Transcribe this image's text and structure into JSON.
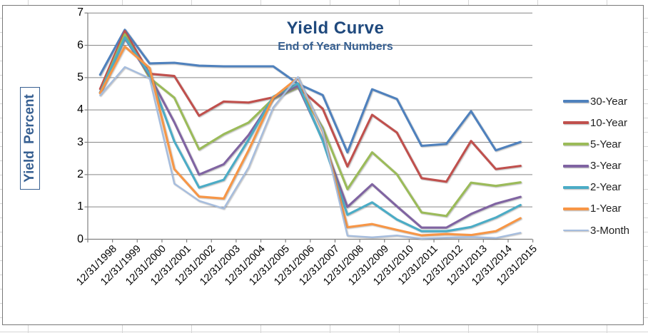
{
  "chart_data": {
    "type": "line",
    "title": "Yield Curve",
    "subtitle": "End of Year Numbers",
    "ylabel": "Yield Percent",
    "ylim": [
      0,
      7
    ],
    "yticks": [
      0,
      1,
      2,
      3,
      4,
      5,
      6,
      7
    ],
    "grid": "horizontal",
    "legend_position": "right",
    "categories": [
      "12/31/1998",
      "12/31/1999",
      "12/31/2000",
      "12/31/2001",
      "12/31/2002",
      "12/31/2003",
      "12/31/2004",
      "12/31/2005",
      "12/31/2006",
      "12/31/2007",
      "12/31/2008",
      "12/31/2009",
      "12/31/2010",
      "12/31/2011",
      "12/31/2012",
      "12/31/2013",
      "12/31/2014",
      "12/31/2015"
    ],
    "series": [
      {
        "name": "30-Year",
        "color": "#4F81BD",
        "values": [
          5.09,
          6.48,
          5.44,
          5.46,
          5.37,
          5.35,
          5.35,
          5.35,
          4.81,
          4.46,
          2.69,
          4.64,
          4.34,
          2.89,
          2.95,
          3.96,
          2.75,
          3.01
        ]
      },
      {
        "name": "10-Year",
        "color": "#C0504D",
        "values": [
          4.65,
          6.44,
          5.12,
          5.05,
          3.82,
          4.26,
          4.23,
          4.39,
          4.71,
          4.04,
          2.25,
          3.85,
          3.3,
          1.89,
          1.78,
          3.04,
          2.17,
          2.27
        ]
      },
      {
        "name": "5-Year",
        "color": "#9BBB59",
        "values": [
          4.54,
          6.34,
          4.99,
          4.38,
          2.78,
          3.25,
          3.61,
          4.35,
          4.7,
          3.45,
          1.55,
          2.69,
          2.01,
          0.83,
          0.72,
          1.75,
          1.65,
          1.76
        ]
      },
      {
        "name": "3-Year",
        "color": "#8064A2",
        "values": [
          4.54,
          6.22,
          5.06,
          3.62,
          2.0,
          2.32,
          3.22,
          4.37,
          4.74,
          3.07,
          1.0,
          1.7,
          1.02,
          0.36,
          0.36,
          0.78,
          1.1,
          1.31
        ]
      },
      {
        "name": "2-Year",
        "color": "#4BACC6",
        "values": [
          4.53,
          6.24,
          5.11,
          3.03,
          1.6,
          1.84,
          3.08,
          4.41,
          4.82,
          3.05,
          0.76,
          1.14,
          0.61,
          0.25,
          0.25,
          0.38,
          0.67,
          1.06
        ]
      },
      {
        "name": "1-Year",
        "color": "#F79646",
        "values": [
          4.52,
          5.96,
          5.3,
          2.17,
          1.32,
          1.26,
          2.75,
          4.38,
          5.0,
          3.34,
          0.37,
          0.47,
          0.29,
          0.12,
          0.16,
          0.13,
          0.25,
          0.65
        ]
      },
      {
        "name": "3-Month",
        "color": "#A6BDDE",
        "values": [
          4.45,
          5.33,
          4.98,
          1.72,
          1.19,
          0.95,
          2.22,
          4.08,
          5.02,
          3.36,
          0.11,
          0.06,
          0.12,
          0.02,
          0.05,
          0.07,
          0.04,
          0.2
        ]
      }
    ],
    "colors": {
      "title_text": "#1F497D",
      "subtitle_text": "#376092",
      "axis_title_text": "#376092",
      "axis_title_border": "#376092",
      "axis_text": "#000000",
      "gridline": "#878787",
      "axis_line": "#808080",
      "chart_border": "#787878"
    }
  }
}
